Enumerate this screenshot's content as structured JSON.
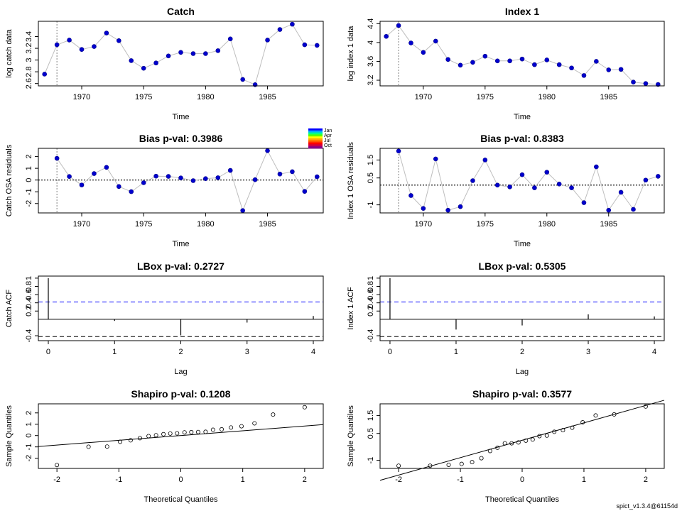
{
  "footer": "spict_v1.3.4@61154d",
  "month_legend": [
    "Jan",
    "Apr",
    "Jul",
    "Oct"
  ],
  "colors": {
    "point": "#0000cd",
    "line": "#bebebe",
    "title_green": "#228b22",
    "ci": "#0000ff"
  },
  "chart_data": [
    {
      "id": "catch-data",
      "type": "line",
      "title": "Catch",
      "title_color": "#000000",
      "xlabel": "Time",
      "ylabel": "log catch data",
      "xlim": [
        1966.5,
        1989.5
      ],
      "ylim": [
        2.56,
        3.66
      ],
      "xticks": [
        1970,
        1975,
        1980,
        1985
      ],
      "yticks": [
        2.6,
        2.8,
        3.0,
        3.2,
        3.4
      ],
      "vline": 1968,
      "x": [
        1967,
        1968,
        1969,
        1970,
        1971,
        1972,
        1973,
        1974,
        1975,
        1976,
        1977,
        1978,
        1979,
        1980,
        1981,
        1982,
        1983,
        1984,
        1985,
        1986,
        1987,
        1988,
        1989
      ],
      "y": [
        2.76,
        3.26,
        3.34,
        3.18,
        3.23,
        3.46,
        3.33,
        2.99,
        2.86,
        2.95,
        3.07,
        3.13,
        3.11,
        3.11,
        3.16,
        3.36,
        2.67,
        2.58,
        3.34,
        3.52,
        3.61,
        3.26,
        3.25
      ]
    },
    {
      "id": "index-data",
      "type": "line",
      "title": "Index 1",
      "title_color": "#000000",
      "xlabel": "Time",
      "ylabel": "log index 1 data",
      "xlim": [
        1966.5,
        1989.5
      ],
      "ylim": [
        3.08,
        4.45
      ],
      "xticks": [
        1970,
        1975,
        1980,
        1985
      ],
      "yticks": [
        3.2,
        3.6,
        4.0,
        4.4
      ],
      "vline": 1968,
      "x": [
        1967,
        1968,
        1969,
        1970,
        1971,
        1972,
        1973,
        1974,
        1975,
        1976,
        1977,
        1978,
        1979,
        1980,
        1981,
        1982,
        1983,
        1984,
        1985,
        1986,
        1987,
        1988,
        1989
      ],
      "y": [
        4.13,
        4.36,
        3.99,
        3.79,
        4.03,
        3.64,
        3.52,
        3.58,
        3.71,
        3.61,
        3.61,
        3.65,
        3.53,
        3.63,
        3.53,
        3.46,
        3.3,
        3.6,
        3.42,
        3.43,
        3.16,
        3.13,
        3.11
      ]
    },
    {
      "id": "catch-osa",
      "type": "line",
      "title": "Bias p-val: 0.3986",
      "title_color": "#228b22",
      "xlabel": "Time",
      "ylabel": "Catch OSA residuals",
      "xlim": [
        1966.5,
        1989.5
      ],
      "ylim": [
        -2.8,
        2.7
      ],
      "xticks": [
        1970,
        1975,
        1980,
        1985
      ],
      "yticks": [
        -2,
        -1,
        0,
        1,
        2
      ],
      "vline": 1968,
      "hline": 0,
      "x": [
        1968,
        1969,
        1970,
        1971,
        1972,
        1973,
        1974,
        1975,
        1976,
        1977,
        1978,
        1979,
        1980,
        1981,
        1982,
        1983,
        1984,
        1985,
        1986,
        1987,
        1988,
        1989
      ],
      "y": [
        1.85,
        0.3,
        -0.42,
        0.55,
        1.08,
        -0.55,
        -0.99,
        -0.23,
        0.33,
        0.31,
        0.18,
        -0.05,
        0.12,
        0.2,
        0.82,
        -2.6,
        0.03,
        2.5,
        0.51,
        0.71,
        -0.97,
        0.28
      ]
    },
    {
      "id": "index-osa",
      "type": "line",
      "title": "Bias p-val: 0.8383",
      "title_color": "#228b22",
      "xlabel": "Time",
      "ylabel": "Index 1 OSA residuals",
      "xlim": [
        1966.5,
        1989.5
      ],
      "ylim": [
        -1.45,
        2.15
      ],
      "xticks": [
        1970,
        1975,
        1980,
        1985
      ],
      "yticks": [
        -1.0,
        0.5,
        1.5
      ],
      "vline": 1968,
      "hline": 0.1,
      "x": [
        1968,
        1969,
        1970,
        1971,
        1972,
        1973,
        1974,
        1975,
        1976,
        1977,
        1978,
        1979,
        1980,
        1981,
        1982,
        1983,
        1984,
        1985,
        1986,
        1987,
        1988,
        1989
      ],
      "y": [
        2.0,
        -0.48,
        -1.2,
        1.56,
        -1.3,
        -1.1,
        0.35,
        1.5,
        0.1,
        0.0,
        0.68,
        -0.05,
        0.82,
        0.16,
        -0.05,
        -0.88,
        1.12,
        -1.3,
        -0.3,
        -1.25,
        0.38,
        0.59
      ]
    },
    {
      "id": "catch-acf",
      "type": "bar",
      "title": "LBox p-val: 0.2727",
      "title_color": "#228b22",
      "xlabel": "Lag",
      "ylabel": "Catch ACF",
      "xlim": [
        -0.15,
        4.15
      ],
      "ylim": [
        -0.52,
        1.05
      ],
      "xticks": [
        0,
        1,
        2,
        3,
        4
      ],
      "yticks": [
        -0.4,
        0.2,
        0.4,
        0.6,
        0.8,
        1.0
      ],
      "ci": 0.42,
      "categories": [
        0,
        1,
        2,
        3,
        4
      ],
      "values": [
        1.0,
        -0.04,
        -0.39,
        -0.08,
        0.08
      ]
    },
    {
      "id": "index-acf",
      "type": "bar",
      "title": "LBox p-val: 0.5305",
      "title_color": "#228b22",
      "xlabel": "Lag",
      "ylabel": "Index 1 ACF",
      "xlim": [
        -0.15,
        4.15
      ],
      "ylim": [
        -0.52,
        1.05
      ],
      "xticks": [
        0,
        1,
        2,
        3,
        4
      ],
      "yticks": [
        -0.4,
        0.2,
        0.4,
        0.6,
        0.8,
        1.0
      ],
      "ci": 0.42,
      "categories": [
        0,
        1,
        2,
        3,
        4
      ],
      "values": [
        1.0,
        -0.25,
        -0.15,
        0.12,
        0.07
      ]
    },
    {
      "id": "catch-qq",
      "type": "scatter",
      "title": "Shapiro p-val: 0.1208",
      "title_color": "#228b22",
      "xlabel": "Theoretical Quantiles",
      "ylabel": "Sample Quantiles",
      "xlim": [
        -2.3,
        2.3
      ],
      "ylim": [
        -2.9,
        2.8
      ],
      "xticks": [
        -2,
        -1,
        0,
        1,
        2
      ],
      "yticks": [
        -2,
        -1,
        0,
        1,
        2
      ],
      "qqline": [
        0.0,
        0.42
      ],
      "x": [
        -2.0,
        -1.49,
        -1.19,
        -0.98,
        -0.81,
        -0.66,
        -0.52,
        -0.4,
        -0.28,
        -0.17,
        -0.06,
        0.06,
        0.17,
        0.28,
        0.4,
        0.52,
        0.66,
        0.81,
        0.98,
        1.19,
        1.49,
        2.0
      ],
      "y": [
        -2.6,
        -0.99,
        -0.97,
        -0.55,
        -0.42,
        -0.23,
        -0.05,
        0.03,
        0.12,
        0.18,
        0.2,
        0.28,
        0.3,
        0.31,
        0.33,
        0.51,
        0.55,
        0.71,
        0.82,
        1.08,
        1.85,
        2.5
      ]
    },
    {
      "id": "index-qq",
      "type": "scatter",
      "title": "Shapiro p-val: 0.3577",
      "title_color": "#228b22",
      "xlabel": "Theoretical Quantiles",
      "ylabel": "Sample Quantiles",
      "xlim": [
        -2.3,
        2.3
      ],
      "ylim": [
        -1.45,
        2.15
      ],
      "xticks": [
        -2,
        -1,
        0,
        1,
        2
      ],
      "yticks": [
        -1.0,
        0.5,
        1.5
      ],
      "qqline": [
        0.12,
        0.97
      ],
      "x": [
        -2.0,
        -1.49,
        -1.19,
        -0.98,
        -0.81,
        -0.66,
        -0.52,
        -0.4,
        -0.28,
        -0.17,
        -0.06,
        0.06,
        0.17,
        0.28,
        0.4,
        0.52,
        0.66,
        0.81,
        0.98,
        1.19,
        1.49,
        2.0
      ],
      "y": [
        -1.3,
        -1.3,
        -1.25,
        -1.2,
        -1.1,
        -0.88,
        -0.48,
        -0.3,
        -0.05,
        -0.05,
        0.0,
        0.1,
        0.16,
        0.35,
        0.38,
        0.59,
        0.68,
        0.82,
        1.12,
        1.5,
        1.56,
        2.0
      ]
    }
  ]
}
